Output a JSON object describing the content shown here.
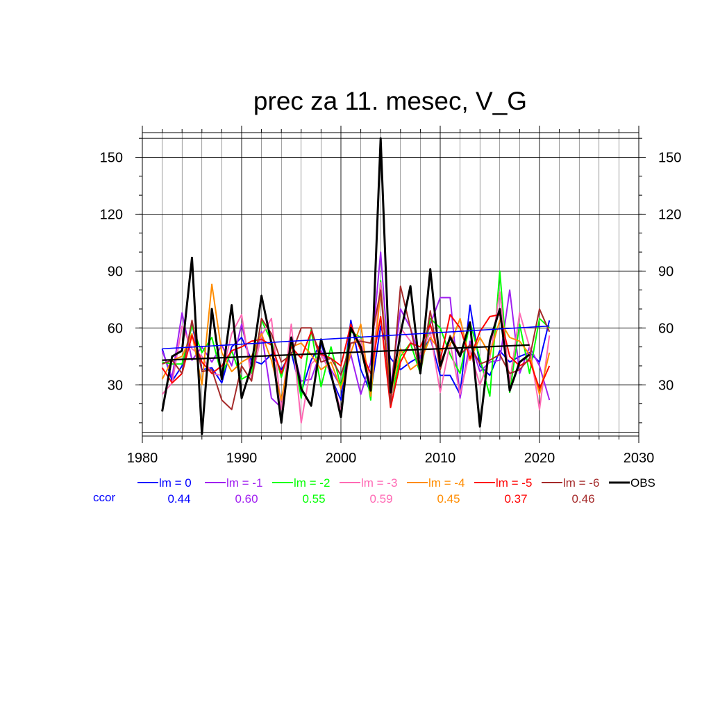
{
  "chart_data": {
    "type": "line",
    "title": "prec za 11. mesec, V_G",
    "xlabel": "",
    "ylabel": "",
    "xlim": [
      1980,
      2030
    ],
    "ylim": [
      3,
      163
    ],
    "x_ticks": [
      "1980",
      "1990",
      "2000",
      "2010",
      "2020",
      "2030"
    ],
    "y_ticks": [
      "30",
      "60",
      "90",
      "120",
      "150"
    ],
    "grid": true,
    "legend_position": "bottom",
    "ccor_label": "ccor",
    "x": [
      1982,
      1983,
      1984,
      1985,
      1986,
      1987,
      1988,
      1989,
      1990,
      1991,
      1992,
      1993,
      1994,
      1995,
      1996,
      1997,
      1998,
      1999,
      2000,
      2001,
      2002,
      2003,
      2004,
      2005,
      2006,
      2007,
      2008,
      2009,
      2010,
      2011,
      2012,
      2013,
      2014,
      2015,
      2016,
      2017,
      2018,
      2019,
      2020,
      2021
    ],
    "series": [
      {
        "name": "lm = 0",
        "color": "#0000ff",
        "ccor": "0.44",
        "values": [
          49,
          32,
          40,
          62,
          38,
          39,
          31,
          50,
          55,
          43,
          41,
          46,
          38,
          47,
          26,
          43,
          52,
          34,
          22,
          64,
          38,
          26,
          61,
          44,
          38,
          42,
          45,
          55,
          35,
          35,
          25,
          72,
          40,
          35,
          48,
          42,
          45,
          47,
          42,
          64
        ],
        "trend": [
          49,
          61
        ]
      },
      {
        "name": "lm = -1",
        "color": "#a020f0",
        "ccor": "0.60",
        "values": [
          48,
          34,
          68,
          43,
          50,
          42,
          51,
          40,
          62,
          39,
          58,
          23,
          18,
          52,
          32,
          33,
          48,
          38,
          29,
          46,
          25,
          42,
          100,
          28,
          70,
          60,
          44,
          62,
          76,
          76,
          23,
          53,
          37,
          42,
          43,
          80,
          36,
          50,
          40,
          22
        ],
        "trend": null
      },
      {
        "name": "lm = -2",
        "color": "#00ff00",
        "ccor": "0.55",
        "values": [
          42,
          41,
          41,
          61,
          47,
          55,
          35,
          48,
          33,
          36,
          64,
          53,
          34,
          53,
          23,
          59,
          29,
          50,
          29,
          58,
          55,
          22,
          85,
          22,
          45,
          52,
          36,
          65,
          60,
          46,
          36,
          63,
          44,
          24,
          90,
          26,
          62,
          36,
          65,
          60
        ],
        "trend": null
      },
      {
        "name": "lm = -3",
        "color": "#ff69b4",
        "ccor": "0.59",
        "values": [
          25,
          31,
          61,
          49,
          45,
          36,
          35,
          57,
          67,
          33,
          56,
          65,
          17,
          62,
          10,
          41,
          46,
          36,
          16,
          52,
          54,
          30,
          84,
          20,
          60,
          53,
          46,
          58,
          26,
          52,
          25,
          48,
          30,
          44,
          79,
          31,
          68,
          50,
          17,
          56
        ],
        "trend": null
      },
      {
        "name": "lm = -4",
        "color": "#ff8c00",
        "ccor": "0.45",
        "values": [
          33,
          43,
          45,
          57,
          30,
          83,
          47,
          37,
          42,
          45,
          57,
          43,
          22,
          50,
          52,
          46,
          38,
          42,
          28,
          47,
          62,
          24,
          80,
          25,
          49,
          38,
          42,
          55,
          48,
          51,
          65,
          43,
          55,
          46,
          64,
          55,
          53,
          46,
          25,
          47
        ],
        "trend": null
      },
      {
        "name": "lm = -5",
        "color": "#ff0000",
        "ccor": "0.37",
        "values": [
          39,
          31,
          36,
          56,
          42,
          36,
          40,
          48,
          50,
          53,
          54,
          51,
          36,
          50,
          44,
          58,
          46,
          44,
          40,
          62,
          48,
          36,
          66,
          18,
          42,
          52,
          50,
          62,
          43,
          67,
          60,
          44,
          58,
          66,
          67,
          45,
          40,
          43,
          28,
          40
        ],
        "trend": null
      },
      {
        "name": "lm = -6",
        "color": "#a52a2a",
        "ccor": "0.46",
        "values": [
          41,
          43,
          36,
          64,
          37,
          38,
          22,
          17,
          40,
          32,
          65,
          57,
          42,
          46,
          60,
          60,
          42,
          44,
          35,
          52,
          53,
          52,
          80,
          20,
          82,
          60,
          36,
          69,
          38,
          56,
          46,
          51,
          41,
          43,
          46,
          36,
          38,
          44,
          70,
          58
        ],
        "trend": null
      },
      {
        "name": "OBS",
        "color": "#000000",
        "ccor": "",
        "values": [
          16,
          45,
          48,
          97,
          4,
          70,
          33,
          72,
          23,
          40,
          77,
          52,
          10,
          55,
          28,
          19,
          54,
          36,
          13,
          60,
          50,
          27,
          160,
          26,
          57,
          82,
          36,
          91,
          40,
          55,
          45,
          63,
          8,
          53,
          70,
          27,
          42,
          46,
          null,
          null
        ],
        "trend": [
          43,
          51
        ]
      }
    ]
  }
}
